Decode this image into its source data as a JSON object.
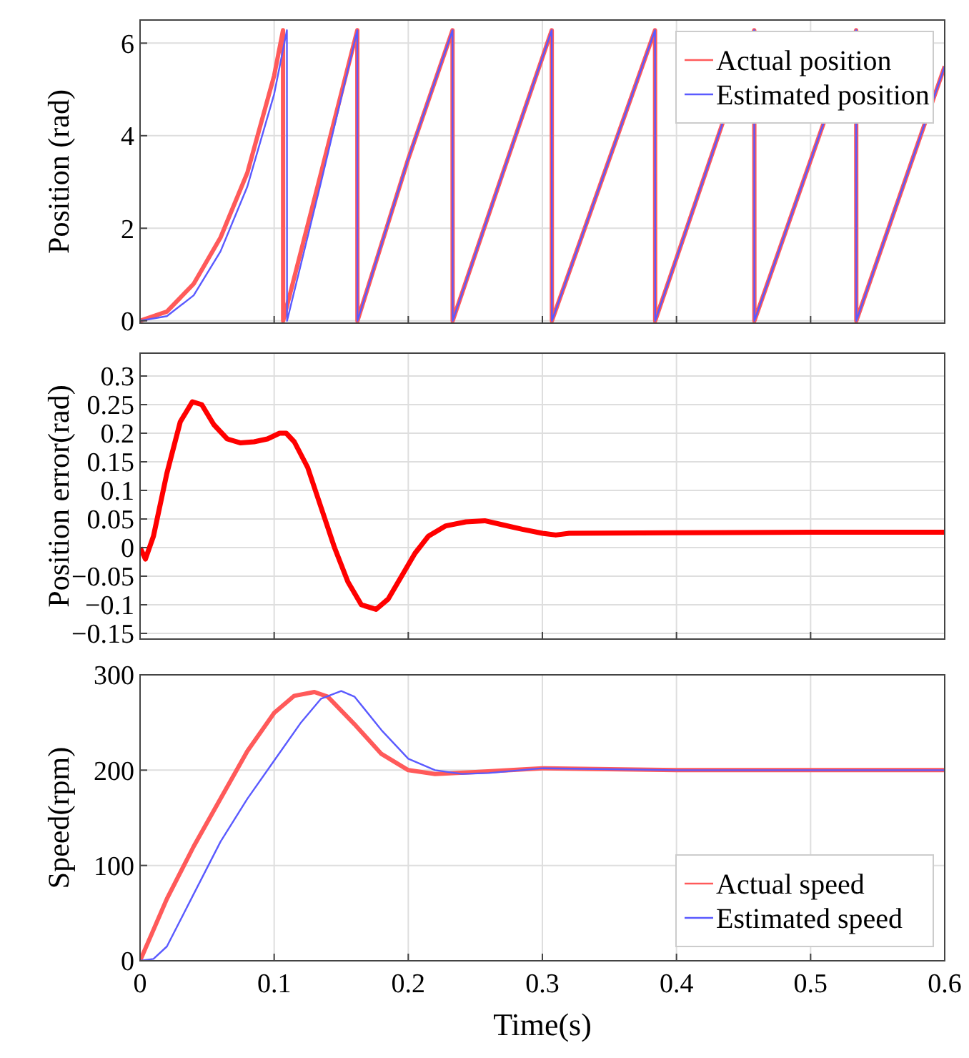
{
  "chart_data": [
    {
      "type": "line",
      "ylabel": "Position (rad)",
      "xlim": [
        0,
        0.6
      ],
      "xticks": [
        0,
        0.1,
        0.2,
        0.3,
        0.4,
        0.5,
        0.6
      ],
      "ylim": [
        -0.05,
        6.5
      ],
      "yticks": [
        0,
        2,
        4,
        6
      ],
      "grid": true,
      "legend": "top right",
      "tick_labels": "y",
      "series": [
        {
          "name": "Actual position",
          "color": "#ff5a5a",
          "x": [
            0,
            0.02,
            0.04,
            0.06,
            0.08,
            0.1,
            0.1066,
            0.1067,
            0.135,
            0.162,
            0.1621,
            0.2,
            0.233,
            0.2331,
            0.27,
            0.307,
            0.3071,
            0.384,
            0.3841,
            0.458,
            0.4581,
            0.534,
            0.5341,
            0.6
          ],
          "values": [
            0,
            0.2,
            0.8,
            1.8,
            3.2,
            5.3,
            6.28,
            0,
            3.2,
            6.28,
            0,
            3.5,
            6.28,
            0,
            3.15,
            6.28,
            0,
            6.28,
            0,
            6.28,
            0,
            6.28,
            0,
            5.5
          ]
        },
        {
          "name": "Estimated position",
          "color": "#5a5aff",
          "x": [
            0,
            0.02,
            0.04,
            0.06,
            0.08,
            0.1,
            0.1095,
            0.1096,
            0.135,
            0.162,
            0.1621,
            0.2,
            0.233,
            0.2331,
            0.27,
            0.307,
            0.3071,
            0.384,
            0.3841,
            0.458,
            0.4581,
            0.534,
            0.5341,
            0.6
          ],
          "values": [
            0,
            0.1,
            0.55,
            1.5,
            2.9,
            4.9,
            6.28,
            0,
            3.0,
            6.28,
            0,
            3.5,
            6.28,
            0,
            3.15,
            6.28,
            0,
            6.28,
            0,
            6.28,
            0,
            6.28,
            0,
            5.5
          ]
        }
      ]
    },
    {
      "type": "line",
      "ylabel": "Position error(rad)",
      "xlim": [
        0,
        0.6
      ],
      "xticks": [
        0,
        0.1,
        0.2,
        0.3,
        0.4,
        0.5,
        0.6
      ],
      "ylim": [
        -0.16,
        0.34
      ],
      "yticks": [
        {
          "value": -0.15,
          "label": "−0.15"
        },
        {
          "value": -0.1,
          "label": "−0.1"
        },
        {
          "value": -0.05,
          "label": "−0.05"
        },
        0,
        0.05,
        0.1,
        0.15,
        0.2,
        0.25,
        0.3
      ],
      "grid": true,
      "tick_labels": "y",
      "series": [
        {
          "color": "#ff0000",
          "x": [
            0,
            0.004,
            0.01,
            0.02,
            0.03,
            0.039,
            0.046,
            0.055,
            0.065,
            0.075,
            0.085,
            0.095,
            0.104,
            0.109,
            0.115,
            0.125,
            0.135,
            0.145,
            0.155,
            0.165,
            0.176,
            0.185,
            0.195,
            0.205,
            0.215,
            0.228,
            0.243,
            0.257,
            0.27,
            0.285,
            0.3,
            0.31,
            0.32,
            0.4,
            0.5,
            0.6
          ],
          "values": [
            0,
            -0.02,
            0.02,
            0.13,
            0.22,
            0.255,
            0.25,
            0.215,
            0.19,
            0.183,
            0.185,
            0.19,
            0.2,
            0.2,
            0.185,
            0.14,
            0.07,
            0,
            -0.06,
            -0.1,
            -0.108,
            -0.09,
            -0.05,
            -0.01,
            0.02,
            0.038,
            0.045,
            0.047,
            0.04,
            0.032,
            0.025,
            0.022,
            0.025,
            0.026,
            0.027,
            0.027
          ]
        }
      ]
    },
    {
      "type": "line",
      "ylabel": "Speed(rpm)",
      "xlabel": "Time(s)",
      "xlim": [
        0,
        0.6
      ],
      "xticks": [
        0,
        0.1,
        0.2,
        0.3,
        0.4,
        0.5,
        0.6
      ],
      "ylim": [
        0,
        300
      ],
      "yticks": [
        0,
        100,
        200,
        300
      ],
      "grid": true,
      "legend": "bottom right",
      "series": [
        {
          "name": "Actual speed",
          "color": "#ff5a5a",
          "x": [
            0,
            0.02,
            0.04,
            0.06,
            0.08,
            0.1,
            0.115,
            0.13,
            0.14,
            0.16,
            0.18,
            0.2,
            0.22,
            0.25,
            0.3,
            0.35,
            0.4,
            0.6
          ],
          "values": [
            0,
            65,
            120,
            170,
            220,
            260,
            278,
            282,
            277,
            248,
            217,
            200,
            196,
            198,
            202,
            201,
            200,
            200
          ]
        },
        {
          "name": "Estimated speed",
          "color": "#5a5aff",
          "x": [
            0,
            0.01,
            0.02,
            0.04,
            0.06,
            0.08,
            0.1,
            0.12,
            0.135,
            0.15,
            0.16,
            0.18,
            0.2,
            0.22,
            0.24,
            0.26,
            0.3,
            0.35,
            0.4,
            0.6
          ],
          "values": [
            0,
            2,
            15,
            70,
            125,
            170,
            210,
            250,
            275,
            283,
            277,
            242,
            212,
            200,
            196,
            197,
            202,
            201,
            200,
            200
          ]
        }
      ]
    }
  ]
}
